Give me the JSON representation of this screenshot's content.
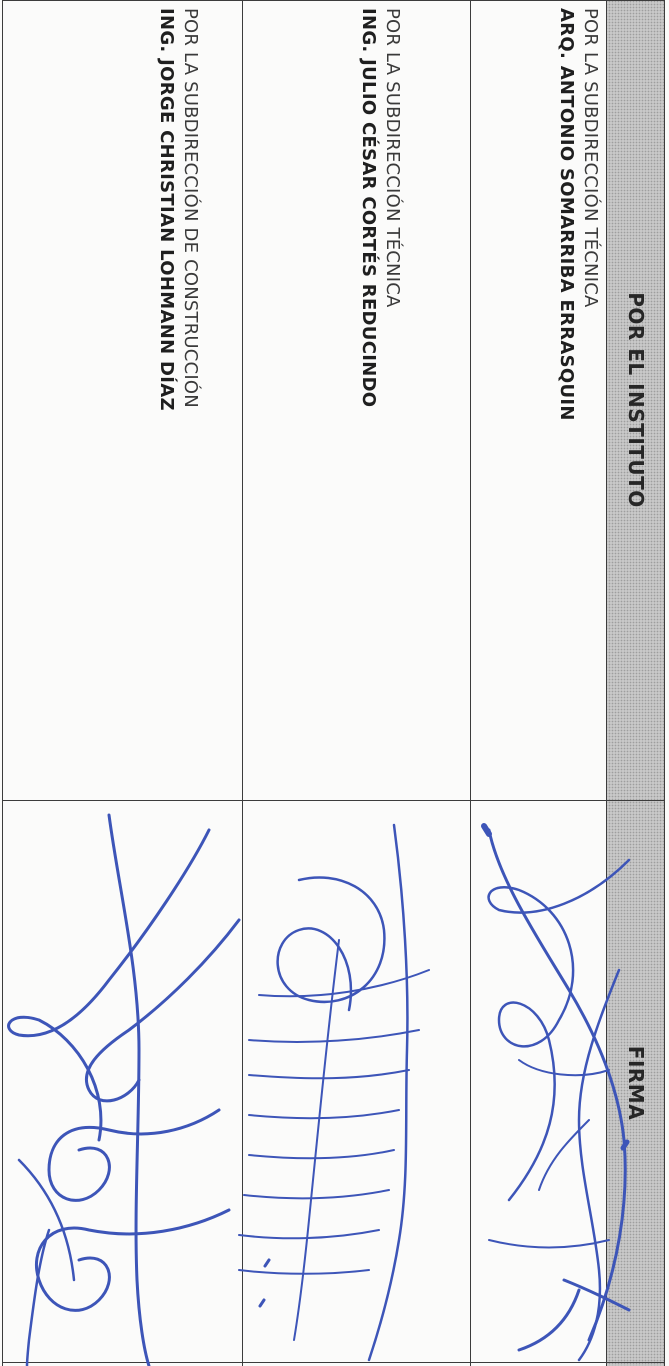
{
  "header": {
    "institute_label": "POR EL INSTITUTO",
    "signature_label": "FIRMA"
  },
  "rows": [
    {
      "subdivision": "POR LA SUBDIRECCIÓN TÉCNICA",
      "name": "ARQ. ANTONIO SOMARRIBA ERRASQUIN"
    },
    {
      "subdivision": "POR LA SUBDIRECCIÓN TÉCNICA",
      "name": "ING. JULIO CÉSAR CORTÉS REDUCINDO"
    },
    {
      "subdivision": "POR LA SUBDIRECCIÓN DE CONSTRUCCIÓN",
      "name": "ING. JORGE CHRISTIAN LOHMANN DÍAZ"
    }
  ],
  "colors": {
    "ink": "#3d55b8",
    "header_fill": "#c8c8c8"
  }
}
